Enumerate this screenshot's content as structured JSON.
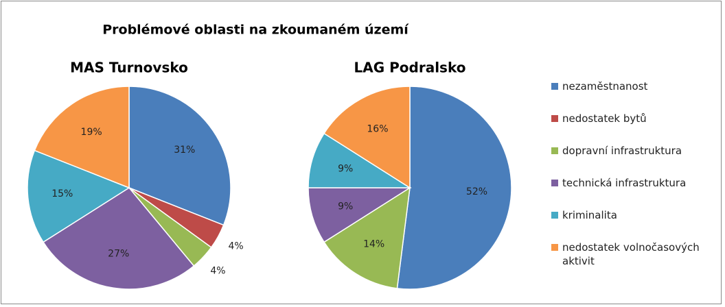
{
  "title": "Problémové oblasti na zkoumaném území",
  "chart_data": [
    {
      "type": "pie",
      "title": "MAS Turnovsko",
      "categories": [
        "nezaměstnanost",
        "nedostatek bytů",
        "dopravní infrastruktura",
        "technická infrastruktura",
        "kriminalita",
        "nedostatek volnočasových aktivit"
      ],
      "values": [
        31,
        4,
        4,
        27,
        15,
        19
      ],
      "value_labels": [
        "31%",
        "4%",
        "4%",
        "27%",
        "15%",
        "19%"
      ],
      "colors": [
        "#4a7ebb",
        "#be4b48",
        "#98b954",
        "#7d60a0",
        "#46aac5",
        "#f79646"
      ]
    },
    {
      "type": "pie",
      "title": "LAG Podralsko",
      "categories": [
        "nezaměstnanost",
        "dopravní infrastruktura",
        "technická infrastruktura",
        "kriminalita",
        "nedostatek volnočasových aktivit"
      ],
      "values": [
        52,
        14,
        9,
        9,
        16
      ],
      "value_labels": [
        "52%",
        "14%",
        "9%",
        "9%",
        "16%"
      ],
      "colors": [
        "#4a7ebb",
        "#98b954",
        "#7d60a0",
        "#46aac5",
        "#f79646"
      ]
    }
  ]
}
